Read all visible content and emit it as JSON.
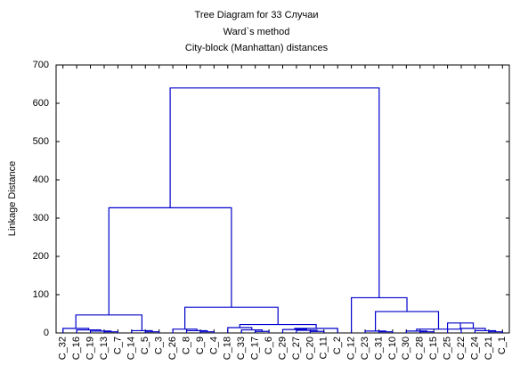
{
  "chart_data": {
    "type": "dendrogram",
    "title": "Tree Diagram for 33 Случаи",
    "subtitle": "Ward`s method",
    "subtitle2": "City-block (Manhattan) distances",
    "y_label": "Linkage Distance",
    "color": "#0000cc",
    "categories": [
      "C_32",
      "C_16",
      "C_19",
      "C_13",
      "C_7",
      "C_14",
      "C_5",
      "C_3",
      "C_26",
      "C_8",
      "C_9",
      "C_4",
      "C_18",
      "C_33",
      "C_17",
      "C_6",
      "C_29",
      "C_27",
      "C_20",
      "C_11",
      "C_2",
      "C_12",
      "C_23",
      "C_31",
      "C_10",
      "C_30",
      "C_28",
      "C_15",
      "C_25",
      "C_22",
      "C_24",
      "C_21",
      "C_1"
    ],
    "merges": [
      [
        3,
        4,
        3
      ],
      [
        2,
        33,
        5
      ],
      [
        1,
        34,
        8
      ],
      [
        0,
        35,
        12
      ],
      [
        6,
        7,
        3
      ],
      [
        5,
        37,
        6
      ],
      [
        36,
        38,
        47
      ],
      [
        10,
        11,
        3
      ],
      [
        9,
        40,
        6
      ],
      [
        8,
        41,
        10
      ],
      [
        14,
        15,
        4
      ],
      [
        13,
        43,
        8
      ],
      [
        12,
        44,
        14
      ],
      [
        18,
        19,
        4
      ],
      [
        17,
        46,
        7
      ],
      [
        16,
        47,
        9
      ],
      [
        48,
        20,
        12
      ],
      [
        45,
        49,
        22
      ],
      [
        42,
        50,
        67
      ],
      [
        39,
        51,
        327
      ],
      [
        23,
        24,
        3
      ],
      [
        22,
        53,
        5
      ],
      [
        26,
        27,
        3
      ],
      [
        25,
        55,
        5
      ],
      [
        31,
        32,
        3
      ],
      [
        30,
        57,
        6
      ],
      [
        29,
        58,
        12
      ],
      [
        28,
        59,
        26
      ],
      [
        56,
        60,
        10
      ],
      [
        54,
        61,
        56
      ],
      [
        21,
        62,
        92
      ],
      [
        52,
        63,
        640
      ]
    ],
    "ylim": [
      0,
      700
    ],
    "yticks": [
      0,
      100,
      200,
      300,
      400,
      500,
      600,
      700
    ]
  }
}
